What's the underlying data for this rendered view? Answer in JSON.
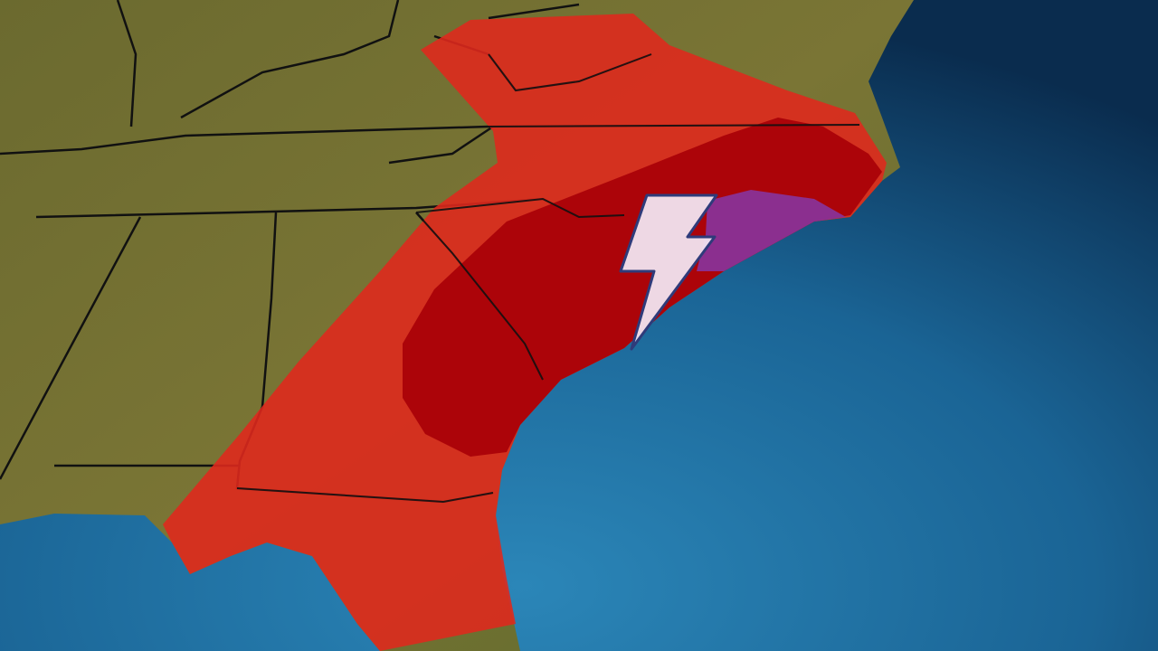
{
  "map": {
    "colors": {
      "land": "#6f6a2e",
      "ocean_light": "#2a7fb2",
      "ocean_dark": "#0a2f52",
      "risk_outer": "#e0281c",
      "risk_inner": "#a80008",
      "risk_highest": "#8b2f8f",
      "lightning_fill": "#f1e4f0",
      "lightning_stroke": "#2f3b7a",
      "borders": "#111111"
    },
    "layers": [
      "land",
      "ocean",
      "state-borders",
      "risk-outer",
      "risk-inner",
      "risk-highest",
      "lightning"
    ],
    "icons": [
      "lightning-bolt-icon"
    ]
  }
}
